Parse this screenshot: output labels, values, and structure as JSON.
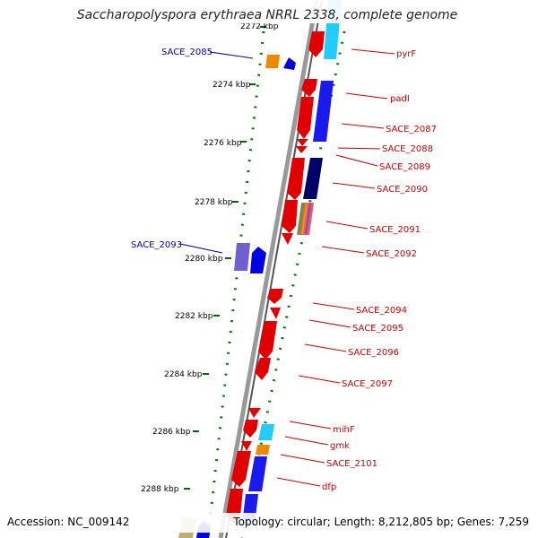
{
  "title": "Saccharopolyspora erythraea NRRL 2338, complete genome",
  "accession": "Accession: NC_009142",
  "topology": "Topology: circular; Length: 8,212,805 bp; Genes: 7,259",
  "colors": {
    "forward_gene": "#e00000",
    "reverse_gene": "#0000e0",
    "cds_cyan": "#22ccff",
    "cds_navy": "#000066",
    "cds_orange": "#ee8800",
    "cds_purple": "#6f5fd0",
    "cds_olive": "#bcb070",
    "backbone": "#888888",
    "tick_dots": "#007700",
    "label_red": "#cc0000",
    "label_blue": "#0000aa"
  },
  "kbp_ticks": [
    "2272 kbp",
    "2274 kbp",
    "2276 kbp",
    "2278 kbp",
    "2280 kbp",
    "2282 kbp",
    "2284 kbp",
    "2286 kbp",
    "2288 kbp"
  ],
  "gene_labels_right": [
    "pyrF",
    "padI",
    "SACE_2087",
    "SACE_2088",
    "SACE_2089",
    "SACE_2090",
    "SACE_2091",
    "SACE_2092",
    "SACE_2094",
    "SACE_2095",
    "SACE_2096",
    "SACE_2097",
    "mihF",
    "gmk",
    "SACE_2101",
    "dfp"
  ],
  "gene_labels_left": [
    "SACE_2085",
    "SACE_2093"
  ]
}
